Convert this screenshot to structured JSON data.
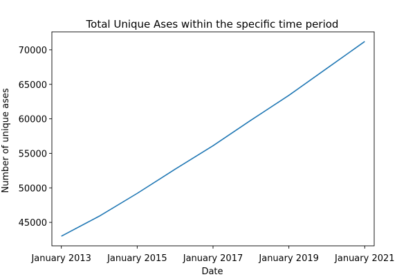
{
  "chart_data": {
    "type": "line",
    "title": "Total Unique Ases within the specific time period",
    "xlabel": "Date",
    "ylabel": "Number of unique ases",
    "x": [
      2013,
      2014,
      2015,
      2016,
      2017,
      2018,
      2019,
      2020,
      2021
    ],
    "xlim": [
      2012.75,
      2021.25
    ],
    "ylim": [
      41600,
      72600
    ],
    "x_ticks": [
      2013,
      2015,
      2017,
      2019,
      2021
    ],
    "x_tick_labels": [
      "January 2013",
      "January 2015",
      "January 2017",
      "January 2019",
      "January 2021"
    ],
    "y_ticks": [
      45000,
      50000,
      55000,
      60000,
      65000,
      70000
    ],
    "y_tick_labels": [
      "45000",
      "50000",
      "55000",
      "60000",
      "65000",
      "70000"
    ],
    "grid": false,
    "series": [
      {
        "name": "Total Unique Ases",
        "color": "#1f77b4",
        "values": [
          43000,
          45900,
          49200,
          52700,
          56100,
          59800,
          63400,
          67300,
          71200
        ]
      }
    ]
  }
}
